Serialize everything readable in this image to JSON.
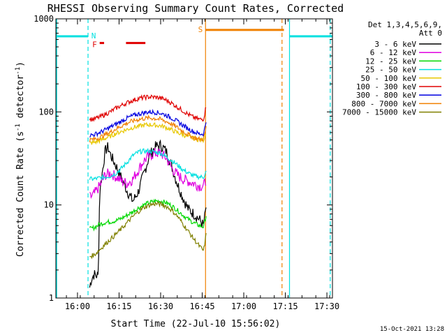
{
  "chart_data": {
    "type": "line",
    "title": "RHESSI Observing Summary Count Rates, Corrected",
    "xlabel": "Start Time (22-Jul-10 15:56:02)",
    "ylabel": "Corrected Count Rate (s",
    "ylabel_sup": "-1",
    "ylabel_mid": " detector",
    "ylabel_tail": ")",
    "timestamp": "15-Oct-2021 13:28",
    "y_scale": "log",
    "ylim": [
      1,
      1000
    ],
    "xlim_minutes_after_start": [
      -3.8,
      96.0
    ],
    "x_ticks": [
      {
        "label": "16:00",
        "t": 4.0
      },
      {
        "label": "16:15",
        "t": 19.0
      },
      {
        "label": "16:30",
        "t": 34.0
      },
      {
        "label": "16:45",
        "t": 49.0
      },
      {
        "label": "17:00",
        "t": 64.0
      },
      {
        "label": "17:15",
        "t": 79.0
      },
      {
        "label": "17:30",
        "t": 94.0
      }
    ],
    "y_ticks": [
      {
        "label": "1",
        "v": 1
      },
      {
        "label": "10",
        "v": 10
      },
      {
        "label": "100",
        "v": 100
      },
      {
        "label": "1000",
        "v": 1000
      }
    ],
    "legend": {
      "header1": "Det 1,3,4,5,6,9,",
      "header2": "Att 0",
      "placement": "right"
    },
    "series": [
      {
        "name": "3 - 6 keV",
        "color": "#000000",
        "points": [
          [
            8.4,
            1.3
          ],
          [
            9.0,
            1.6
          ],
          [
            10.0,
            1.8
          ],
          [
            11.5,
            1.7
          ],
          [
            12.0,
            14
          ],
          [
            13.0,
            23
          ],
          [
            14.0,
            38
          ],
          [
            15.0,
            42
          ],
          [
            16.0,
            34
          ],
          [
            18.0,
            26
          ],
          [
            20.0,
            19
          ],
          [
            22.0,
            14
          ],
          [
            24.0,
            11
          ],
          [
            26.0,
            14
          ],
          [
            28.0,
            22
          ],
          [
            30.0,
            34
          ],
          [
            32.0,
            42
          ],
          [
            34.0,
            44
          ],
          [
            36.0,
            38
          ],
          [
            38.0,
            26
          ],
          [
            40.0,
            17
          ],
          [
            42.0,
            12
          ],
          [
            44.0,
            9
          ],
          [
            46.0,
            8
          ],
          [
            48.0,
            7
          ],
          [
            49.5,
            6
          ],
          [
            50.5,
            10
          ]
        ]
      },
      {
        "name": "6 - 12 keV",
        "color": "#e000e0",
        "points": [
          [
            8.4,
            12
          ],
          [
            10.0,
            13
          ],
          [
            12.0,
            16
          ],
          [
            14.0,
            21
          ],
          [
            16.0,
            22
          ],
          [
            18.0,
            20
          ],
          [
            20.0,
            18
          ],
          [
            22.0,
            17
          ],
          [
            24.0,
            19
          ],
          [
            26.0,
            24
          ],
          [
            28.0,
            30
          ],
          [
            30.0,
            34
          ],
          [
            32.0,
            36
          ],
          [
            34.0,
            36
          ],
          [
            36.0,
            32
          ],
          [
            38.0,
            25
          ],
          [
            40.0,
            21
          ],
          [
            42.0,
            19
          ],
          [
            44.0,
            18
          ],
          [
            46.0,
            17
          ],
          [
            48.0,
            16
          ],
          [
            49.5,
            16
          ],
          [
            50.5,
            19
          ]
        ]
      },
      {
        "name": "12 - 25 keV",
        "color": "#00d800",
        "points": [
          [
            8.4,
            5.5
          ],
          [
            10.0,
            5.7
          ],
          [
            12.0,
            6.2
          ],
          [
            14.0,
            6.5
          ],
          [
            16.0,
            6.6
          ],
          [
            18.0,
            6.8
          ],
          [
            20.0,
            7.2
          ],
          [
            22.0,
            7.8
          ],
          [
            24.0,
            8.5
          ],
          [
            26.0,
            9.3
          ],
          [
            28.0,
            10.0
          ],
          [
            30.0,
            10.6
          ],
          [
            32.0,
            11.0
          ],
          [
            34.0,
            11.0
          ],
          [
            36.0,
            10.6
          ],
          [
            38.0,
            9.8
          ],
          [
            40.0,
            8.8
          ],
          [
            42.0,
            7.8
          ],
          [
            44.0,
            7.0
          ],
          [
            46.0,
            6.4
          ],
          [
            48.0,
            6.0
          ],
          [
            49.5,
            5.8
          ],
          [
            50.5,
            8.0
          ]
        ]
      },
      {
        "name": "25 - 50 keV",
        "color": "#00e0e0",
        "points": [
          [
            8.4,
            19
          ],
          [
            10.0,
            19
          ],
          [
            12.0,
            19.5
          ],
          [
            14.0,
            20
          ],
          [
            16.0,
            20.5
          ],
          [
            18.0,
            22
          ],
          [
            20.0,
            25
          ],
          [
            22.0,
            29
          ],
          [
            24.0,
            34
          ],
          [
            26.0,
            37
          ],
          [
            28.0,
            38
          ],
          [
            30.0,
            38
          ],
          [
            32.0,
            37
          ],
          [
            34.0,
            36
          ],
          [
            36.0,
            33
          ],
          [
            38.0,
            30
          ],
          [
            40.0,
            27
          ],
          [
            42.0,
            24
          ],
          [
            44.0,
            22
          ],
          [
            46.0,
            20.5
          ],
          [
            48.0,
            20
          ],
          [
            49.5,
            20
          ],
          [
            50.5,
            23
          ]
        ]
      },
      {
        "name": "50 - 100 keV",
        "color": "#e8c800",
        "points": [
          [
            8.4,
            46
          ],
          [
            10.0,
            47
          ],
          [
            12.0,
            49
          ],
          [
            14.0,
            52
          ],
          [
            16.0,
            55
          ],
          [
            18.0,
            59
          ],
          [
            20.0,
            62
          ],
          [
            22.0,
            65
          ],
          [
            24.0,
            68
          ],
          [
            26.0,
            70
          ],
          [
            28.0,
            72
          ],
          [
            30.0,
            73
          ],
          [
            32.0,
            72
          ],
          [
            34.0,
            71
          ],
          [
            36.0,
            68
          ],
          [
            38.0,
            64
          ],
          [
            40.0,
            60
          ],
          [
            42.0,
            57
          ],
          [
            44.0,
            54
          ],
          [
            46.0,
            52
          ],
          [
            48.0,
            50
          ],
          [
            49.5,
            50
          ],
          [
            50.5,
            62
          ]
        ]
      },
      {
        "name": "100 - 300 keV",
        "color": "#e00000",
        "points": [
          [
            8.4,
            83
          ],
          [
            10.0,
            84
          ],
          [
            12.0,
            88
          ],
          [
            14.0,
            94
          ],
          [
            16.0,
            101
          ],
          [
            18.0,
            110
          ],
          [
            20.0,
            118
          ],
          [
            22.0,
            126
          ],
          [
            24.0,
            133
          ],
          [
            26.0,
            139
          ],
          [
            28.0,
            143
          ],
          [
            30.0,
            145
          ],
          [
            32.0,
            144
          ],
          [
            34.0,
            141
          ],
          [
            36.0,
            134
          ],
          [
            38.0,
            124
          ],
          [
            40.0,
            113
          ],
          [
            42.0,
            103
          ],
          [
            44.0,
            94
          ],
          [
            46.0,
            87
          ],
          [
            48.0,
            83
          ],
          [
            49.5,
            84
          ],
          [
            50.5,
            120
          ]
        ]
      },
      {
        "name": "300 - 800 keV",
        "color": "#0000e0",
        "points": [
          [
            8.4,
            56
          ],
          [
            10.0,
            57
          ],
          [
            12.0,
            60
          ],
          [
            14.0,
            64
          ],
          [
            16.0,
            69
          ],
          [
            18.0,
            74
          ],
          [
            20.0,
            80
          ],
          [
            22.0,
            86
          ],
          [
            24.0,
            91
          ],
          [
            26.0,
            95
          ],
          [
            28.0,
            98
          ],
          [
            30.0,
            100
          ],
          [
            32.0,
            99
          ],
          [
            34.0,
            97
          ],
          [
            36.0,
            92
          ],
          [
            38.0,
            86
          ],
          [
            40.0,
            79
          ],
          [
            42.0,
            72
          ],
          [
            44.0,
            66
          ],
          [
            46.0,
            61
          ],
          [
            48.0,
            58
          ],
          [
            49.5,
            58
          ],
          [
            50.5,
            82
          ]
        ]
      },
      {
        "name": "800 - 7000 keV",
        "color": "#f08000",
        "points": [
          [
            8.4,
            50
          ],
          [
            10.0,
            51
          ],
          [
            12.0,
            53
          ],
          [
            14.0,
            57
          ],
          [
            16.0,
            61
          ],
          [
            18.0,
            66
          ],
          [
            20.0,
            71
          ],
          [
            22.0,
            76
          ],
          [
            24.0,
            80
          ],
          [
            26.0,
            83
          ],
          [
            28.0,
            85
          ],
          [
            30.0,
            86
          ],
          [
            32.0,
            85
          ],
          [
            34.0,
            83
          ],
          [
            36.0,
            79
          ],
          [
            38.0,
            74
          ],
          [
            40.0,
            68
          ],
          [
            42.0,
            62
          ],
          [
            44.0,
            57
          ],
          [
            46.0,
            53
          ],
          [
            48.0,
            51
          ],
          [
            49.5,
            51
          ],
          [
            50.5,
            70
          ]
        ]
      },
      {
        "name": "7000 - 15000 keV",
        "color": "#808000",
        "points": [
          [
            8.4,
            2.8
          ],
          [
            10.0,
            2.9
          ],
          [
            12.0,
            3.3
          ],
          [
            14.0,
            3.8
          ],
          [
            16.0,
            4.3
          ],
          [
            18.0,
            4.9
          ],
          [
            20.0,
            5.6
          ],
          [
            22.0,
            6.5
          ],
          [
            24.0,
            7.5
          ],
          [
            26.0,
            8.5
          ],
          [
            28.0,
            9.4
          ],
          [
            30.0,
            10.0
          ],
          [
            32.0,
            10.3
          ],
          [
            34.0,
            10.2
          ],
          [
            36.0,
            9.7
          ],
          [
            38.0,
            8.8
          ],
          [
            40.0,
            7.6
          ],
          [
            42.0,
            6.3
          ],
          [
            44.0,
            5.2
          ],
          [
            46.0,
            4.3
          ],
          [
            48.0,
            3.6
          ],
          [
            49.5,
            3.2
          ],
          [
            50.5,
            5.0
          ]
        ]
      }
    ],
    "annotations": [
      {
        "label": "N",
        "color": "#00e0e0",
        "t0": -3.8,
        "t1": 7.8,
        "v": 650,
        "boundary_t": 7.8,
        "boundary_style": "dashed"
      },
      {
        "label": "",
        "color": "#00e0e0",
        "t0": 80.5,
        "t1": 96.0,
        "v": 650,
        "boundary_t": 80.5,
        "boundary_style": "solid",
        "end_t": 95.2
      },
      {
        "label": "F",
        "color": "#e00000",
        "t0": 12.0,
        "t1": 13.6,
        "v": 550
      },
      {
        "label": "",
        "color": "#e00000",
        "t0": 21.5,
        "t1": 28.5,
        "v": 550
      },
      {
        "label": "S",
        "color": "#f08000",
        "t0": 50.2,
        "t1": 78.5,
        "v": 760,
        "boundary_t": 50.2,
        "boundary_style": "solid",
        "end_t": 77.8
      }
    ],
    "cyan_start_line_t": -3.8
  }
}
